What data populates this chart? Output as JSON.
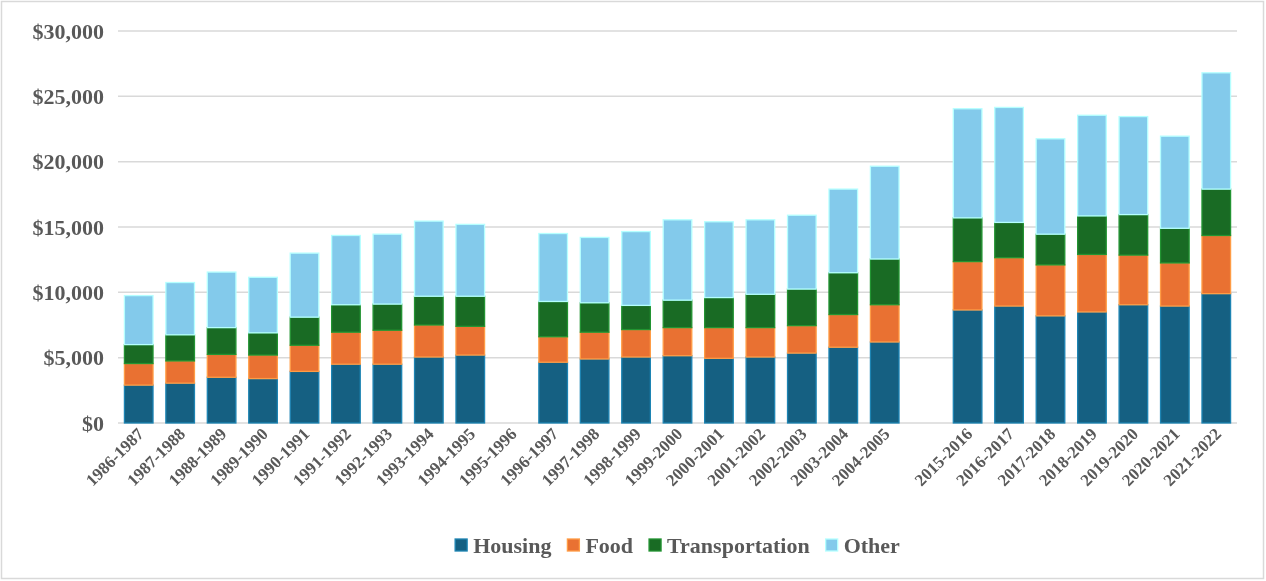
{
  "chart_data": {
    "type": "bar",
    "stacked": true,
    "categories": [
      "1986-1987",
      "1987-1988",
      "1988-1989",
      "1989-1990",
      "1990-1991",
      "1991-1992",
      "1992-1993",
      "1993-1994",
      "1994-1995",
      "1995-1996",
      "1996-1997",
      "1997-1998",
      "1998-1999",
      "1999-2000",
      "2000-2001",
      "2001-2002",
      "2002-2003",
      "2003-2004",
      "2004-2005",
      null,
      "2015-2016",
      "2016-2017",
      "2017-2018",
      "2018-2019",
      "2019-2020",
      "2020-2021",
      "2021-2022"
    ],
    "series": [
      {
        "name": "Housing",
        "color": "#156082",
        "values": [
          2900,
          3050,
          3500,
          3400,
          3950,
          4500,
          4500,
          5050,
          5200,
          null,
          4650,
          4900,
          5050,
          5150,
          4950,
          5050,
          5350,
          5800,
          6200,
          null,
          8650,
          8950,
          8200,
          8500,
          9050,
          8950,
          9900
        ]
      },
      {
        "name": "Food",
        "color": "#e97132",
        "values": [
          1650,
          1700,
          1750,
          1800,
          2000,
          2450,
          2600,
          2450,
          2200,
          null,
          1950,
          2050,
          2100,
          2150,
          2350,
          2250,
          2100,
          2500,
          2850,
          null,
          3700,
          3700,
          3900,
          4400,
          3800,
          3300,
          4450
        ]
      },
      {
        "name": "Transportation",
        "color": "#196b24",
        "values": [
          1450,
          2000,
          2050,
          1700,
          2150,
          2100,
          2000,
          2200,
          2300,
          null,
          2700,
          2250,
          1850,
          2100,
          2300,
          2550,
          2800,
          3200,
          3500,
          null,
          3350,
          2700,
          2350,
          2950,
          3100,
          2650,
          3550
        ]
      },
      {
        "name": "Other",
        "color": "#83caeb",
        "values": [
          3750,
          4000,
          4250,
          4250,
          4900,
          5300,
          5350,
          5750,
          5500,
          null,
          5200,
          5000,
          5650,
          6150,
          5800,
          5700,
          5650,
          6400,
          7100,
          null,
          8350,
          8800,
          7300,
          7700,
          7500,
          7050,
          8900
        ]
      }
    ],
    "ylim": [
      0,
      30000
    ],
    "yticks": [
      {
        "value": 0,
        "label": "$0"
      },
      {
        "value": 5000,
        "label": "$5,000"
      },
      {
        "value": 10000,
        "label": "$10,000"
      },
      {
        "value": 15000,
        "label": "$15,000"
      },
      {
        "value": 20000,
        "label": "$20,000"
      },
      {
        "value": 25000,
        "label": "$25,000"
      },
      {
        "value": 30000,
        "label": "$30,000"
      }
    ],
    "grid": "y",
    "legend": "bottom"
  }
}
